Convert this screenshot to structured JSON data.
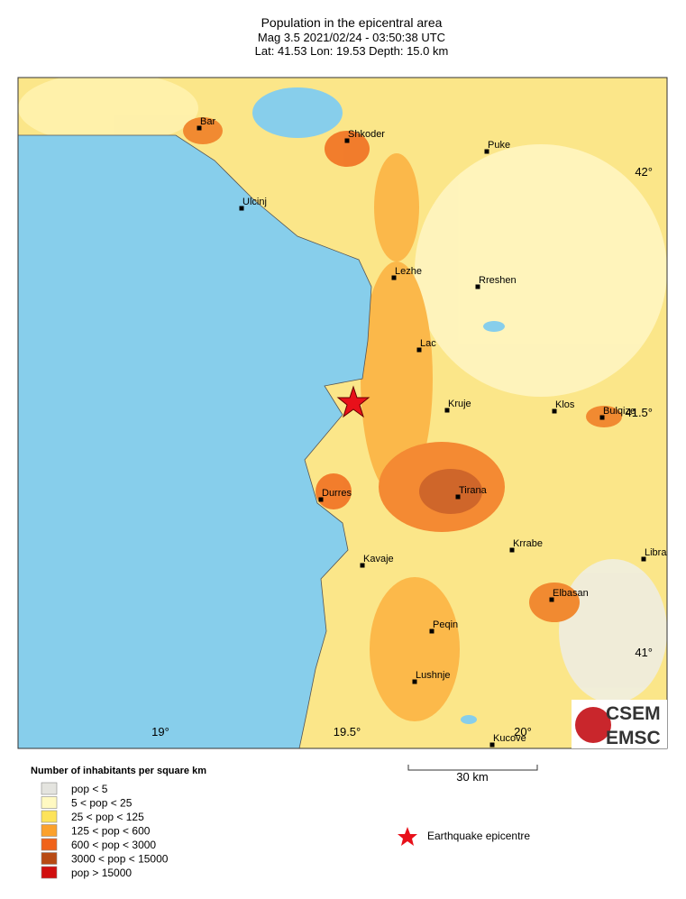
{
  "header": {
    "title": "Population in the epicentral area",
    "line2": "Mag 3.5  2021/02/24 - 03:50:38 UTC",
    "line3": "Lat: 41.53   Lon: 19.53     Depth: 15.0 km"
  },
  "map": {
    "lon_labels": [
      "19°",
      "19.5°",
      "20°"
    ],
    "lat_labels": [
      "42°",
      "41.5°",
      "41°"
    ],
    "cities": [
      "Bar",
      "Shkoder",
      "Puke",
      "Ulcinj",
      "Lezhe",
      "Rreshen",
      "Lac",
      "Kruje",
      "Klos",
      "Bulqize",
      "Durres",
      "Tirana",
      "Krrabe",
      "Kavaje",
      "Libra",
      "Elbasan",
      "Peqin",
      "Lushnje",
      "Kucove"
    ],
    "scale_label": "30 km"
  },
  "legend": {
    "title": "Number of inhabitants per square km",
    "entries": [
      {
        "label": "pop < 5",
        "color": "#e4e4df"
      },
      {
        "label": "5 < pop < 25",
        "color": "#fff9c2"
      },
      {
        "label": "25 < pop < 125",
        "color": "#fde35a"
      },
      {
        "label": "125 < pop < 600",
        "color": "#fba12c"
      },
      {
        "label": "600 < pop < 3000",
        "color": "#f0621a"
      },
      {
        "label": "3000 < pop < 15000",
        "color": "#b84a14"
      },
      {
        "label": "pop > 15000",
        "color": "#d10f0f"
      }
    ],
    "epicentre": "Earthquake epicentre"
  },
  "logo": {
    "top": "CSEM",
    "bottom": "EMSC"
  }
}
